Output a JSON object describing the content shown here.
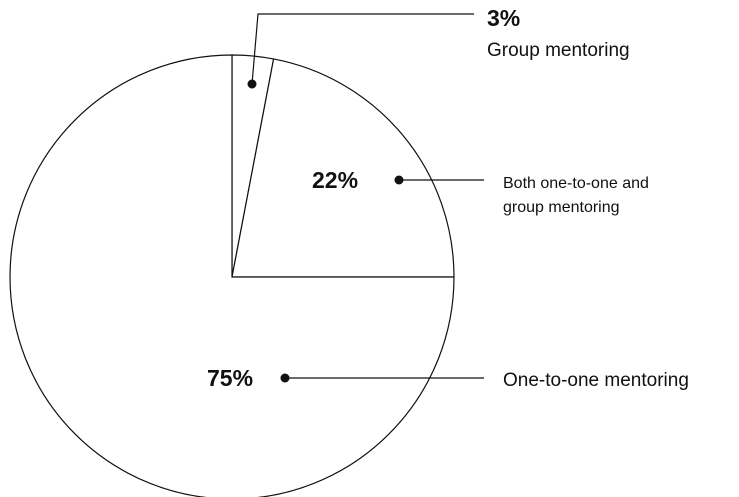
{
  "chart_data": {
    "type": "pie",
    "title": "",
    "slices": [
      {
        "label": "Group mentoring",
        "value": 3,
        "value_label": "3%"
      },
      {
        "label": "Both one-to-one and group mentoring",
        "label_lines": [
          "Both one-to-one and",
          "group mentoring"
        ],
        "value": 22,
        "value_label": "22%"
      },
      {
        "label": "One-to-one mentoring",
        "value": 75,
        "value_label": "75%"
      }
    ],
    "fill_color": "#ffffff",
    "stroke_color": "#111111",
    "legend": "none"
  }
}
